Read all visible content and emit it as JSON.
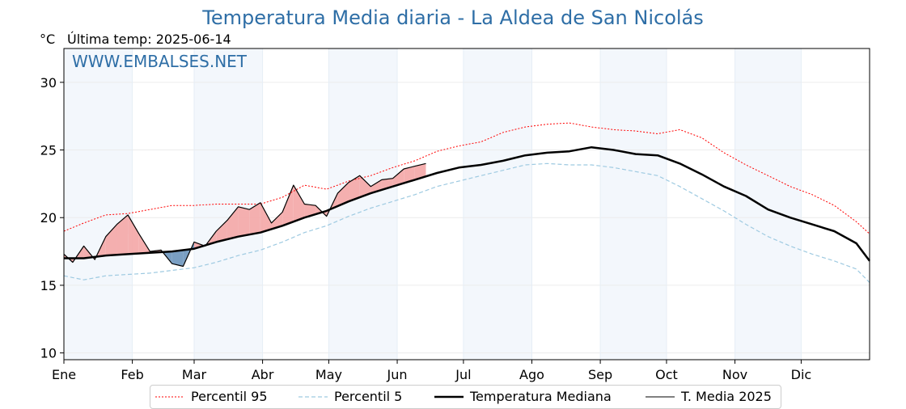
{
  "title": "Temperatura Media diaria - La Aldea de San Nicolás",
  "unit_label": "°C",
  "last_temp_label": "Última temp: 2025-06-14",
  "watermark": "WWW.EMBALSES.NET",
  "colors": {
    "title": "#2e6ea6",
    "p95": "#ff0000",
    "p5": "#9ecae1",
    "median": "#000000",
    "current": "#000000",
    "above_fill": "#f4a6a6",
    "below_fill": "#6b95bd",
    "month_band": "#f3f7fc"
  },
  "chart_data": {
    "type": "line",
    "title": "Temperatura Media diaria - La Aldea de San Nicolás",
    "ylabel": "°C",
    "ylim": [
      9.5,
      32.5
    ],
    "yticks": [
      10,
      15,
      20,
      25,
      30
    ],
    "xlim": [
      1,
      366
    ],
    "month_labels": [
      "Ene",
      "Feb",
      "Mar",
      "Abr",
      "May",
      "Jun",
      "Jul",
      "Ago",
      "Sep",
      "Oct",
      "Nov",
      "Dic"
    ],
    "month_start_days": [
      1,
      32,
      60,
      91,
      121,
      152,
      182,
      213,
      244,
      274,
      305,
      335
    ],
    "grid": true,
    "shaded_months": [
      "Ene",
      "Mar",
      "May",
      "Jul",
      "Sep",
      "Nov"
    ],
    "legend_position": "bottom-center",
    "series": [
      {
        "name": "Percentil 95",
        "style": "dotted-red",
        "x": [
          1,
          10,
          20,
          30,
          40,
          50,
          60,
          70,
          80,
          90,
          100,
          110,
          120,
          130,
          140,
          150,
          160,
          170,
          180,
          190,
          200,
          210,
          220,
          230,
          240,
          250,
          260,
          270,
          280,
          290,
          300,
          310,
          320,
          330,
          340,
          350,
          360,
          366
        ],
        "values": [
          19.0,
          19.6,
          20.2,
          20.3,
          20.6,
          20.9,
          20.9,
          21.0,
          21.0,
          21.0,
          21.5,
          22.4,
          22.1,
          22.7,
          23.1,
          23.7,
          24.2,
          24.9,
          25.3,
          25.6,
          26.3,
          26.7,
          26.9,
          27.0,
          26.7,
          26.5,
          26.4,
          26.2,
          26.5,
          25.9,
          24.8,
          23.9,
          23.1,
          22.3,
          21.7,
          20.9,
          19.7,
          18.8
        ]
      },
      {
        "name": "Percentil 5",
        "style": "dashed-lightblue",
        "x": [
          1,
          10,
          20,
          30,
          40,
          50,
          60,
          70,
          80,
          90,
          100,
          110,
          120,
          130,
          140,
          150,
          160,
          170,
          180,
          190,
          200,
          210,
          220,
          230,
          240,
          250,
          260,
          270,
          280,
          290,
          300,
          310,
          320,
          330,
          340,
          350,
          360,
          366
        ],
        "values": [
          15.7,
          15.4,
          15.7,
          15.8,
          15.9,
          16.1,
          16.3,
          16.7,
          17.2,
          17.6,
          18.2,
          18.9,
          19.4,
          20.1,
          20.7,
          21.2,
          21.7,
          22.3,
          22.7,
          23.1,
          23.5,
          23.9,
          24.0,
          23.9,
          23.9,
          23.7,
          23.4,
          23.1,
          22.3,
          21.4,
          20.5,
          19.5,
          18.6,
          17.9,
          17.3,
          16.8,
          16.2,
          15.2
        ]
      },
      {
        "name": "Temperatura Mediana",
        "style": "thick-black",
        "x": [
          1,
          10,
          20,
          30,
          40,
          50,
          60,
          70,
          80,
          90,
          100,
          110,
          120,
          130,
          140,
          150,
          160,
          170,
          180,
          190,
          200,
          210,
          220,
          230,
          240,
          250,
          260,
          270,
          280,
          290,
          300,
          310,
          320,
          330,
          340,
          350,
          360,
          366
        ],
        "values": [
          17.0,
          17.0,
          17.2,
          17.3,
          17.4,
          17.5,
          17.7,
          18.2,
          18.6,
          18.9,
          19.4,
          20.0,
          20.5,
          21.2,
          21.8,
          22.3,
          22.8,
          23.3,
          23.7,
          23.9,
          24.2,
          24.6,
          24.8,
          24.9,
          25.2,
          25.0,
          24.7,
          24.6,
          24.0,
          23.2,
          22.3,
          21.6,
          20.6,
          20.0,
          19.5,
          19.0,
          18.1,
          16.8
        ]
      },
      {
        "name": "T. Media 2025",
        "style": "thin-black",
        "x": [
          1,
          5,
          10,
          15,
          20,
          25,
          30,
          35,
          40,
          45,
          50,
          55,
          60,
          65,
          70,
          75,
          80,
          85,
          90,
          95,
          100,
          105,
          110,
          115,
          120,
          125,
          130,
          135,
          140,
          145,
          150,
          155,
          160,
          165
        ],
        "values": [
          17.3,
          16.7,
          17.9,
          16.9,
          18.6,
          19.5,
          20.2,
          18.8,
          17.5,
          17.6,
          16.6,
          16.4,
          18.2,
          17.9,
          19.0,
          19.8,
          20.8,
          20.6,
          21.1,
          19.6,
          20.4,
          22.4,
          21.0,
          20.9,
          20.1,
          21.8,
          22.6,
          23.1,
          22.3,
          22.8,
          22.9,
          23.6,
          23.8,
          24.0
        ]
      }
    ]
  },
  "legend": {
    "p95": "Percentil 95",
    "p5": "Percentil 5",
    "median": "Temperatura Mediana",
    "current": "T. Media 2025"
  }
}
